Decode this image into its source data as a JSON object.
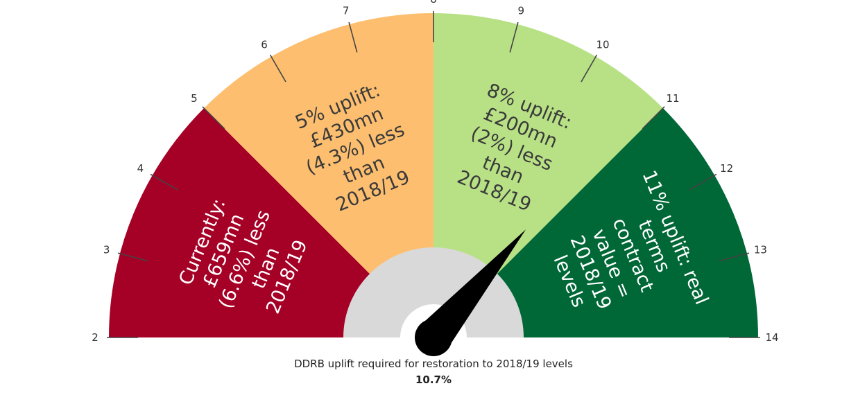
{
  "chart_data": {
    "type": "gauge",
    "min": 2,
    "max": 14,
    "ticks": [
      2,
      3,
      4,
      5,
      6,
      7,
      8,
      9,
      10,
      11,
      12,
      13,
      14
    ],
    "needle_value": 10.7,
    "caption": "DDRB uplift required for restoration to 2018/19 levels",
    "value_label": "10.7%",
    "bands": [
      {
        "from": 2,
        "to": 5,
        "color": "#A50026",
        "text_color": "#ffffff",
        "lines": [
          "Currently:",
          "£659mn",
          "(6.6%) less",
          "than",
          "2018/19"
        ]
      },
      {
        "from": 5,
        "to": 8,
        "color": "#FDBF6F",
        "text_color": "#3a3a3a",
        "lines": [
          "5% uplift:",
          "£430mn",
          "(4.3%) less",
          "than",
          "2018/19"
        ]
      },
      {
        "from": 8,
        "to": 11,
        "color": "#B8E186",
        "text_color": "#3a3a3a",
        "lines": [
          "8% uplift:",
          "£200mn",
          "(2%) less",
          "than",
          "2018/19"
        ]
      },
      {
        "from": 11,
        "to": 14,
        "color": "#006837",
        "text_color": "#ffffff",
        "lines": [
          "11% uplift: real",
          "terms",
          "contract",
          "value =",
          "2018/19",
          "levels"
        ]
      }
    ]
  },
  "colors": {
    "hub": "#d9d9d9",
    "needle": "#000000",
    "tick": "#444444"
  }
}
